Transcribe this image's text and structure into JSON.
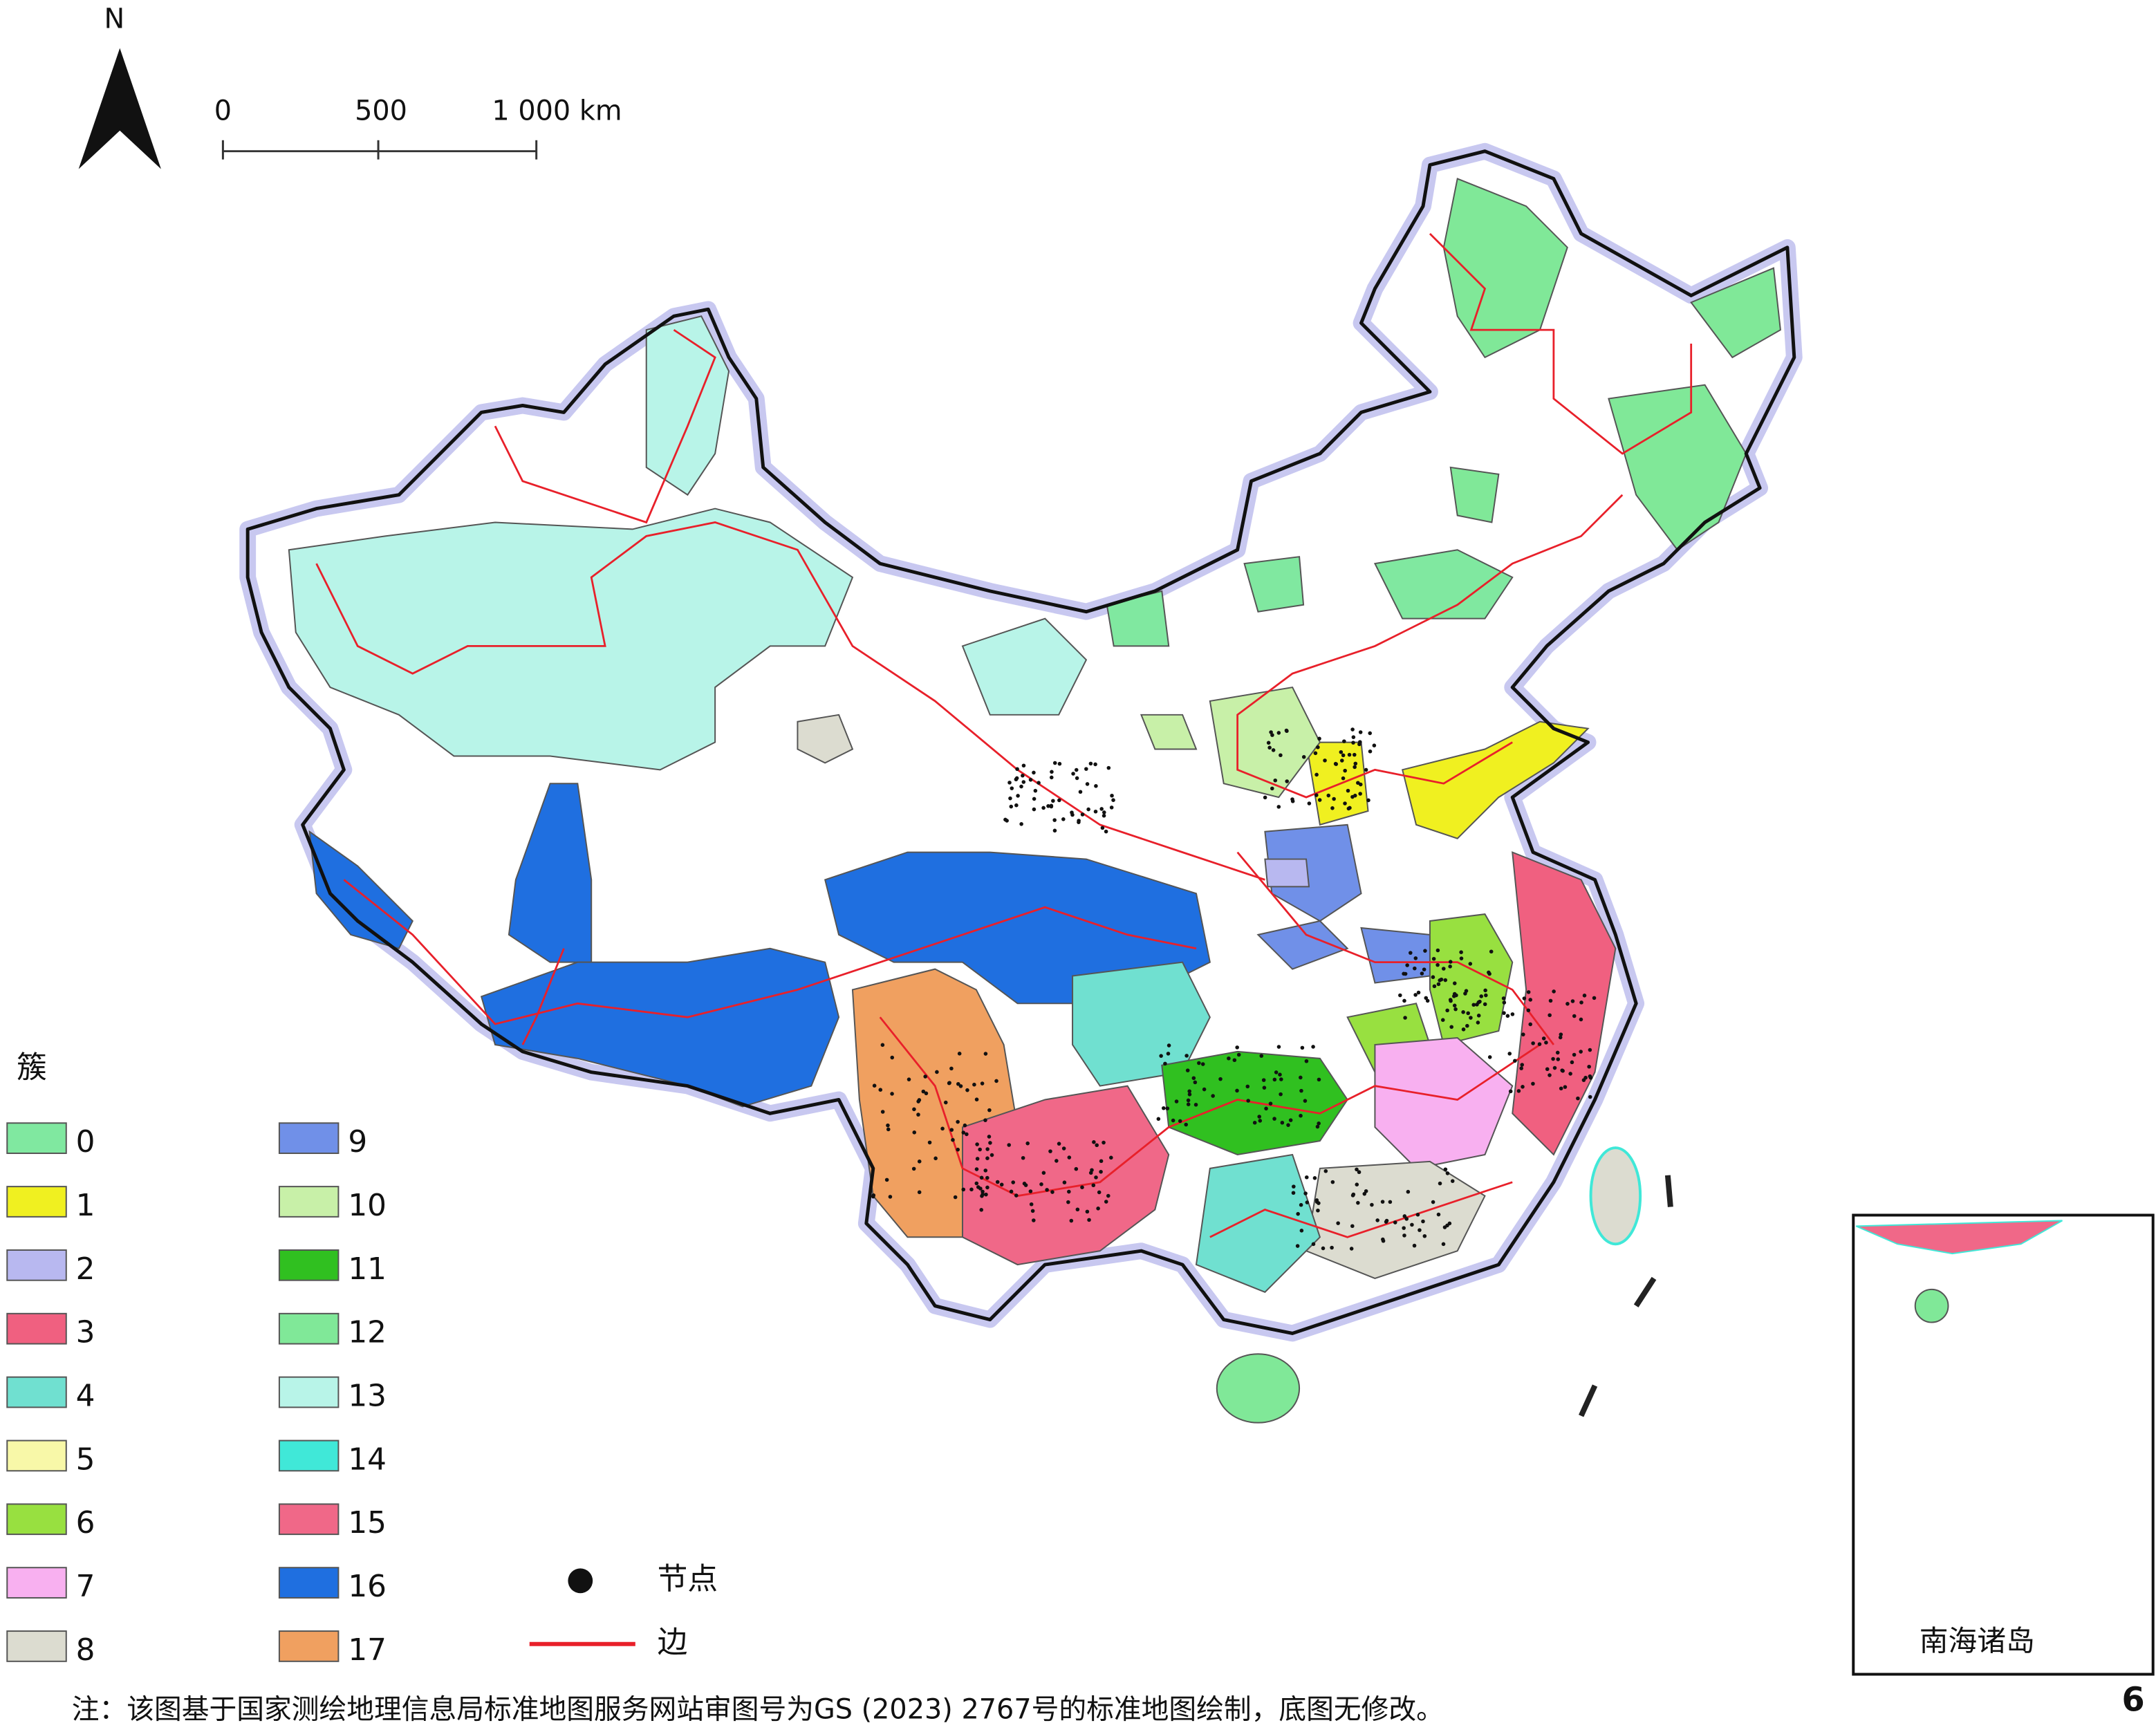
{
  "north": "N",
  "scale": {
    "labels": [
      "0",
      "500",
      "1 000 km"
    ]
  },
  "legend": {
    "title": "簇",
    "clusters": [
      {
        "label": "0",
        "color": "#80e8a0"
      },
      {
        "label": "1",
        "color": "#f0f020"
      },
      {
        "label": "2",
        "color": "#b8b8f0"
      },
      {
        "label": "3",
        "color": "#f06080"
      },
      {
        "label": "4",
        "color": "#70e0d0"
      },
      {
        "label": "5",
        "color": "#f8f8a8"
      },
      {
        "label": "6",
        "color": "#98e040"
      },
      {
        "label": "7",
        "color": "#f8b0f0"
      },
      {
        "label": "8",
        "color": "#dcdcd0"
      },
      {
        "label": "9",
        "color": "#7090e8"
      },
      {
        "label": "10",
        "color": "#c8f0a8"
      },
      {
        "label": "11",
        "color": "#30c020"
      },
      {
        "label": "12",
        "color": "#80e898"
      },
      {
        "label": "13",
        "color": "#b8f4e8"
      },
      {
        "label": "14",
        "color": "#40e8d8"
      },
      {
        "label": "15",
        "color": "#f06888"
      },
      {
        "label": "16",
        "color": "#1f6fe0"
      },
      {
        "label": "17",
        "color": "#f0a060"
      }
    ],
    "node": "节点",
    "edge": "边",
    "edge_color": "#e8202a"
  },
  "inset": {
    "title": "南海诸岛"
  },
  "note": "注：该图基于国家测绘地理信息局标准地图服务网站审图号为GS (2023) 2767号的标准地图绘制，底图无修改。",
  "page_number": "6"
}
